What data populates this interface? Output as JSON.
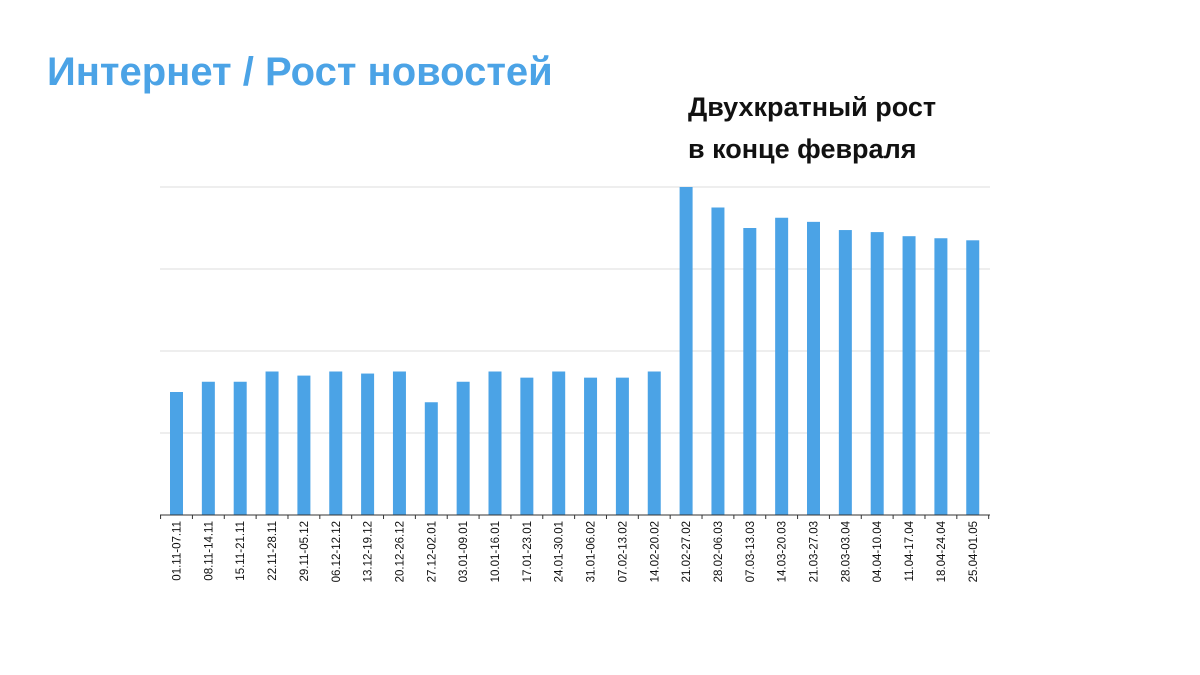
{
  "slide": {
    "title": "Интернет / Рост новостей"
  },
  "annotation": {
    "line1": "Двухкратный рост",
    "line2": "в конце февраля"
  },
  "colors": {
    "title": "#4BA3E6",
    "bar": "#4BA3E6",
    "grid": "#dddddd",
    "axis": "#333333"
  },
  "chart_data": {
    "type": "bar",
    "title": "",
    "xlabel": "",
    "ylabel": "",
    "ylim": [
      0,
      8
    ],
    "grid": true,
    "legend": "none",
    "y_tick_labels_shown": false,
    "categories": [
      "01.11-07.11",
      "08.11-14.11",
      "15.11-21.11",
      "22.11-28.11",
      "29.11-05.12",
      "06.12-12.12",
      "13.12-19.12",
      "20.12-26.12",
      "27.12-02.01",
      "03.01-09.01",
      "10.01-16.01",
      "17.01-23.01",
      "24.01-30.01",
      "31.01-06.02",
      "07.02-13.02",
      "14.02-20.02",
      "21.02-27.02",
      "28.02-06.03",
      "07.03-13.03",
      "14.03-20.03",
      "21.03-27.03",
      "28.03-03.04",
      "04.04-10.04",
      "11.04-17.04",
      "18.04-24.04",
      "25.04-01.05"
    ],
    "values": [
      3.0,
      3.25,
      3.25,
      3.5,
      3.4,
      3.5,
      3.45,
      3.5,
      2.75,
      3.25,
      3.5,
      3.35,
      3.5,
      3.35,
      3.35,
      3.5,
      8.0,
      7.5,
      7.0,
      7.25,
      7.15,
      6.95,
      6.9,
      6.8,
      6.75,
      6.7
    ]
  }
}
